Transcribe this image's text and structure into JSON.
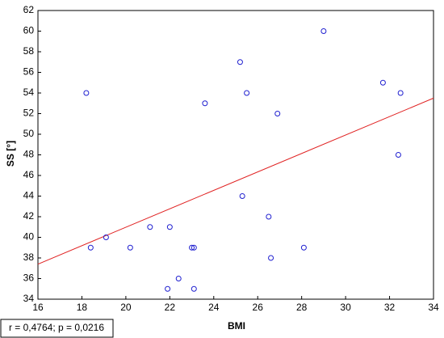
{
  "chart_data": {
    "type": "scatter",
    "x_label": "BMI",
    "y_label": "SS [°]",
    "annotation": "r = 0,4764; p = 0,0216",
    "x": [
      18.2,
      18.4,
      19.1,
      20.2,
      21.1,
      21.9,
      22.0,
      22.4,
      23.0,
      23.1,
      23.1,
      23.6,
      25.2,
      25.3,
      25.5,
      26.5,
      26.6,
      26.9,
      28.1,
      29.0,
      31.7,
      32.5,
      32.4
    ],
    "values": [
      54,
      39,
      40,
      39,
      41,
      35,
      41,
      36,
      39,
      39,
      35,
      53,
      57,
      44,
      54,
      42,
      38,
      52,
      39,
      60,
      55,
      54,
      48
    ],
    "color": "#2020d0",
    "fit_line": {
      "x": [
        16,
        34
      ],
      "y": [
        37.4,
        53.5
      ],
      "color": "#e02020"
    },
    "xlim": [
      16,
      34
    ],
    "ylim": [
      34,
      62
    ],
    "xticks": [
      16,
      18,
      20,
      22,
      24,
      26,
      28,
      30,
      32,
      34
    ],
    "yticks": [
      34,
      36,
      38,
      40,
      42,
      44,
      46,
      48,
      50,
      52,
      54,
      56,
      58,
      60,
      62
    ]
  }
}
